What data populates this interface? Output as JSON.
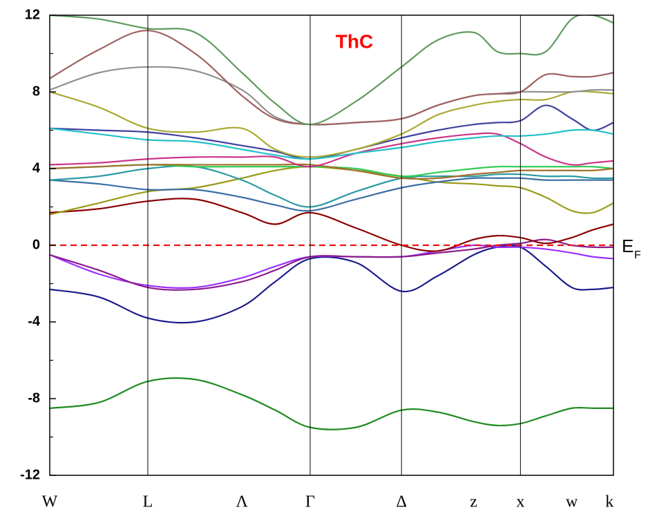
{
  "chart_data": {
    "type": "line",
    "title": "ThC",
    "fermi_level": 0,
    "fermi_label": {
      "main": "E",
      "sub": "F"
    },
    "fermi_color": "#ee1111",
    "xlim": [
      0,
      100
    ],
    "xticks": [
      {
        "value": 0,
        "label": "W"
      },
      {
        "value": 17.4,
        "label": "L"
      },
      {
        "value": 34.1,
        "label": "Λ"
      },
      {
        "value": 46.2,
        "label": "Γ"
      },
      {
        "value": 62.4,
        "label": "Δ"
      },
      {
        "value": 75.2,
        "label": "z"
      },
      {
        "value": 83.5,
        "label": "x"
      },
      {
        "value": 92.6,
        "label": "w"
      },
      {
        "value": 99.3,
        "label": "k"
      }
    ],
    "vlines": [
      17.4,
      46.2,
      62.4,
      83.5
    ],
    "ylim": [
      -12,
      12
    ],
    "yticks": [
      -12,
      -8,
      -4,
      0,
      4,
      8,
      12
    ],
    "yminorticks": [
      -10,
      -6,
      -2,
      2,
      6,
      10
    ],
    "x": [
      0,
      8.7,
      17.4,
      25.8,
      34.1,
      40,
      46.2,
      54.3,
      62.4,
      68.8,
      75.2,
      79.4,
      83.5,
      88,
      92.6,
      96.3,
      100
    ],
    "series": [
      {
        "color": "#1f8a1f",
        "values": [
          -8.5,
          -8.2,
          -7.1,
          -7.0,
          -7.8,
          -8.6,
          -9.5,
          -9.5,
          -8.6,
          -8.7,
          -9.2,
          -9.4,
          -9.3,
          -8.9,
          -8.5,
          -8.5,
          -8.5
        ]
      },
      {
        "color": "#1a1a8c",
        "values": [
          -2.3,
          -2.7,
          -3.8,
          -4.0,
          -3.2,
          -1.9,
          -0.7,
          -0.9,
          -2.4,
          -1.6,
          -0.5,
          -0.1,
          -0.1,
          -1.1,
          -2.2,
          -2.3,
          -2.2
        ]
      },
      {
        "color": "#9b30ff",
        "values": [
          -0.5,
          -1.5,
          -2.1,
          -2.2,
          -1.7,
          -1.1,
          -0.6,
          -0.6,
          -0.6,
          -0.3,
          0.0,
          -0.1,
          -0.1,
          -0.2,
          -0.4,
          -0.6,
          -0.7
        ]
      },
      {
        "color": "#8b1a8b",
        "values": [
          -0.5,
          -1.3,
          -2.2,
          -2.3,
          -1.9,
          -1.3,
          -0.6,
          -0.6,
          -0.6,
          -0.4,
          -0.2,
          0.0,
          0.1,
          0.3,
          0.0,
          -0.1,
          -0.1
        ]
      },
      {
        "color": "#8b0000",
        "values": [
          1.7,
          1.9,
          2.3,
          2.4,
          1.7,
          1.1,
          1.7,
          0.9,
          0.0,
          -0.3,
          0.3,
          0.5,
          0.4,
          0.1,
          0.4,
          0.8,
          1.1
        ]
      },
      {
        "color": "#9a9a1a",
        "values": [
          1.6,
          2.2,
          2.8,
          3.0,
          3.5,
          3.9,
          4.1,
          3.9,
          3.6,
          3.3,
          3.2,
          3.1,
          3.0,
          2.5,
          1.8,
          1.7,
          2.2
        ]
      },
      {
        "color": "#3a6ea5",
        "values": [
          3.4,
          3.2,
          2.9,
          2.9,
          2.5,
          2.1,
          1.8,
          2.4,
          3.0,
          3.3,
          3.5,
          3.5,
          3.5,
          3.4,
          3.4,
          3.4,
          3.4
        ]
      },
      {
        "color": "#2a9aa0",
        "values": [
          3.4,
          3.6,
          4.0,
          4.1,
          3.4,
          2.6,
          2.0,
          2.8,
          3.5,
          3.6,
          3.6,
          3.7,
          3.7,
          3.6,
          3.6,
          3.5,
          3.5
        ]
      },
      {
        "color": "#33cc55",
        "values": [
          4.0,
          4.1,
          4.2,
          4.1,
          4.1,
          4.1,
          4.1,
          4.0,
          3.6,
          3.8,
          4.0,
          4.1,
          4.1,
          4.1,
          4.1,
          4.1,
          4.0
        ]
      },
      {
        "color": "#a0702a",
        "values": [
          4.0,
          4.1,
          4.2,
          4.2,
          4.2,
          4.2,
          4.2,
          3.9,
          3.5,
          3.5,
          3.7,
          3.8,
          3.9,
          3.9,
          3.9,
          3.9,
          4.0
        ]
      },
      {
        "color": "#cc3388",
        "values": [
          4.2,
          4.3,
          4.5,
          4.6,
          4.6,
          4.6,
          4.1,
          4.8,
          5.3,
          5.6,
          5.8,
          5.8,
          5.3,
          4.6,
          4.2,
          4.3,
          4.4
        ]
      },
      {
        "color": "#4040a0",
        "values": [
          6.1,
          6.0,
          5.9,
          5.6,
          5.2,
          4.9,
          4.5,
          5.0,
          5.6,
          6.0,
          6.3,
          6.4,
          6.5,
          7.3,
          6.6,
          6.0,
          6.4
        ]
      },
      {
        "color": "#22c0c8",
        "values": [
          6.1,
          5.8,
          5.5,
          5.4,
          5.0,
          4.7,
          4.5,
          4.8,
          5.1,
          5.4,
          5.6,
          5.7,
          5.7,
          5.8,
          6.0,
          6.0,
          5.8
        ]
      },
      {
        "color": "#aaaa33",
        "values": [
          8.0,
          7.2,
          6.1,
          5.9,
          6.1,
          5.0,
          4.6,
          5.0,
          5.8,
          6.8,
          7.3,
          7.5,
          7.6,
          7.6,
          8.0,
          8.0,
          7.9
        ]
      },
      {
        "color": "#909090",
        "values": [
          8.1,
          9.0,
          9.3,
          9.1,
          8.1,
          6.7,
          6.3,
          6.4,
          6.6,
          7.3,
          7.8,
          7.9,
          8.0,
          8.0,
          8.0,
          8.1,
          8.1
        ]
      },
      {
        "color": "#a06060",
        "values": [
          8.7,
          10.2,
          11.2,
          10.0,
          7.8,
          6.6,
          6.3,
          6.4,
          6.6,
          7.3,
          7.8,
          7.9,
          8.0,
          8.9,
          8.8,
          8.8,
          9.0
        ]
      },
      {
        "color": "#5e9a5e",
        "values": [
          12.0,
          11.8,
          11.3,
          11.1,
          9.0,
          7.4,
          6.3,
          7.5,
          9.3,
          10.7,
          11.1,
          10.1,
          10.0,
          10.1,
          11.8,
          12.0,
          11.6
        ]
      }
    ]
  }
}
